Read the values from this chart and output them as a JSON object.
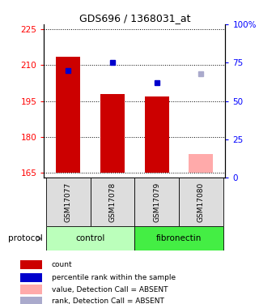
{
  "title": "GDS696 / 1368031_at",
  "samples": [
    "GSM17077",
    "GSM17078",
    "GSM17079",
    "GSM17080"
  ],
  "bar_values": [
    213.5,
    198.0,
    197.0,
    173.0
  ],
  "bar_bottom": 165,
  "bar_colors": [
    "#CC0000",
    "#CC0000",
    "#CC0000",
    "#FFAAAA"
  ],
  "rank_values": [
    70,
    75,
    62,
    68
  ],
  "rank_present": [
    true,
    true,
    true,
    false
  ],
  "rank_color_present": "#0000CC",
  "rank_color_absent": "#AAAACC",
  "ylim_left": [
    163,
    227
  ],
  "ylim_right": [
    0,
    100
  ],
  "yticks_left": [
    165,
    180,
    195,
    210,
    225
  ],
  "yticks_right": [
    0,
    25,
    50,
    75,
    100
  ],
  "ytick_labels_right": [
    "0",
    "25",
    "50",
    "75",
    "100%"
  ],
  "protocol_groups": [
    {
      "label": "control",
      "start": 0,
      "end": 2,
      "color": "#BBFFBB"
    },
    {
      "label": "fibronectin",
      "start": 2,
      "end": 4,
      "color": "#44EE44"
    }
  ],
  "legend_items": [
    {
      "label": "count",
      "color": "#CC0000"
    },
    {
      "label": "percentile rank within the sample",
      "color": "#0000CC"
    },
    {
      "label": "value, Detection Call = ABSENT",
      "color": "#FFAAAA"
    },
    {
      "label": "rank, Detection Call = ABSENT",
      "color": "#AAAACC"
    }
  ],
  "protocol_label": "protocol",
  "bar_width": 0.55
}
